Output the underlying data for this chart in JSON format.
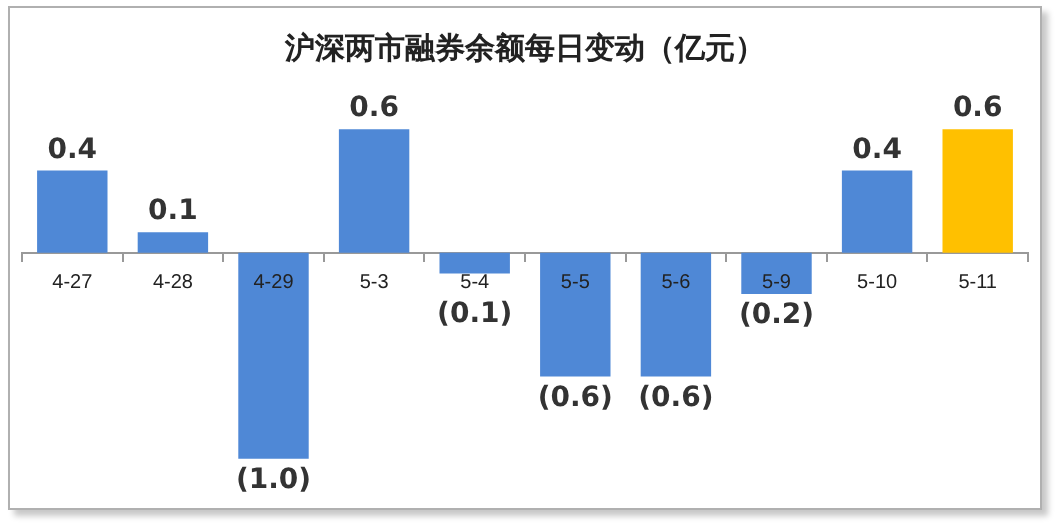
{
  "chart_data": {
    "type": "bar",
    "title": "沪深两市融券余额每日变动（亿元）",
    "categories": [
      "4-27",
      "4-28",
      "4-29",
      "5-3",
      "5-4",
      "5-5",
      "5-6",
      "5-9",
      "5-10",
      "5-11"
    ],
    "values": [
      0.4,
      0.1,
      -1.0,
      0.6,
      -0.1,
      -0.6,
      -0.6,
      -0.2,
      0.4,
      0.6
    ],
    "colors": [
      "#4f88d6",
      "#4f88d6",
      "#4f88d6",
      "#4f88d6",
      "#4f88d6",
      "#4f88d6",
      "#4f88d6",
      "#4f88d6",
      "#4f88d6",
      "#ffc000"
    ],
    "value_labels": [
      "0.4",
      "0.1",
      "(1.0)",
      "0.6",
      "(0.1)",
      "(0.6)",
      "(0.6)",
      "(0.2)",
      "0.4",
      "0.6"
    ],
    "legend": false,
    "grid": false
  }
}
